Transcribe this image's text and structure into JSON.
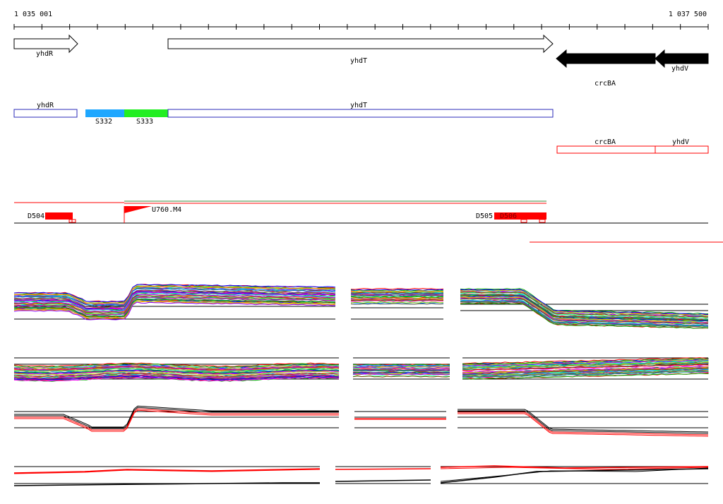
{
  "coordinates": {
    "start": "1 035 001",
    "end": "1 037 500"
  },
  "genes": [
    {
      "name": "yhdR",
      "strand": "+",
      "filled": false
    },
    {
      "name": "yhdT",
      "strand": "+",
      "filled": false
    },
    {
      "name": "crcBA",
      "strand": "-",
      "filled": true
    },
    {
      "name": "yhdV",
      "strand": "-",
      "filled": true
    }
  ],
  "segments": {
    "blue_boxes": [
      "yhdR",
      "yhdT"
    ],
    "colored_blocks": [
      {
        "label": "S332",
        "color": "#1ea7ff"
      },
      {
        "label": "S333",
        "color": "#22ee22"
      }
    ],
    "red_boxes": [
      "crcBA",
      "yhdV"
    ]
  },
  "features": [
    "D504",
    "U760.M4",
    "D505",
    "D506"
  ],
  "colors": {
    "outline_blue": "#2b2bb8",
    "feature_red": "#ff0000",
    "green_line": "#3a8a3a",
    "gene_fill": "#000000"
  }
}
